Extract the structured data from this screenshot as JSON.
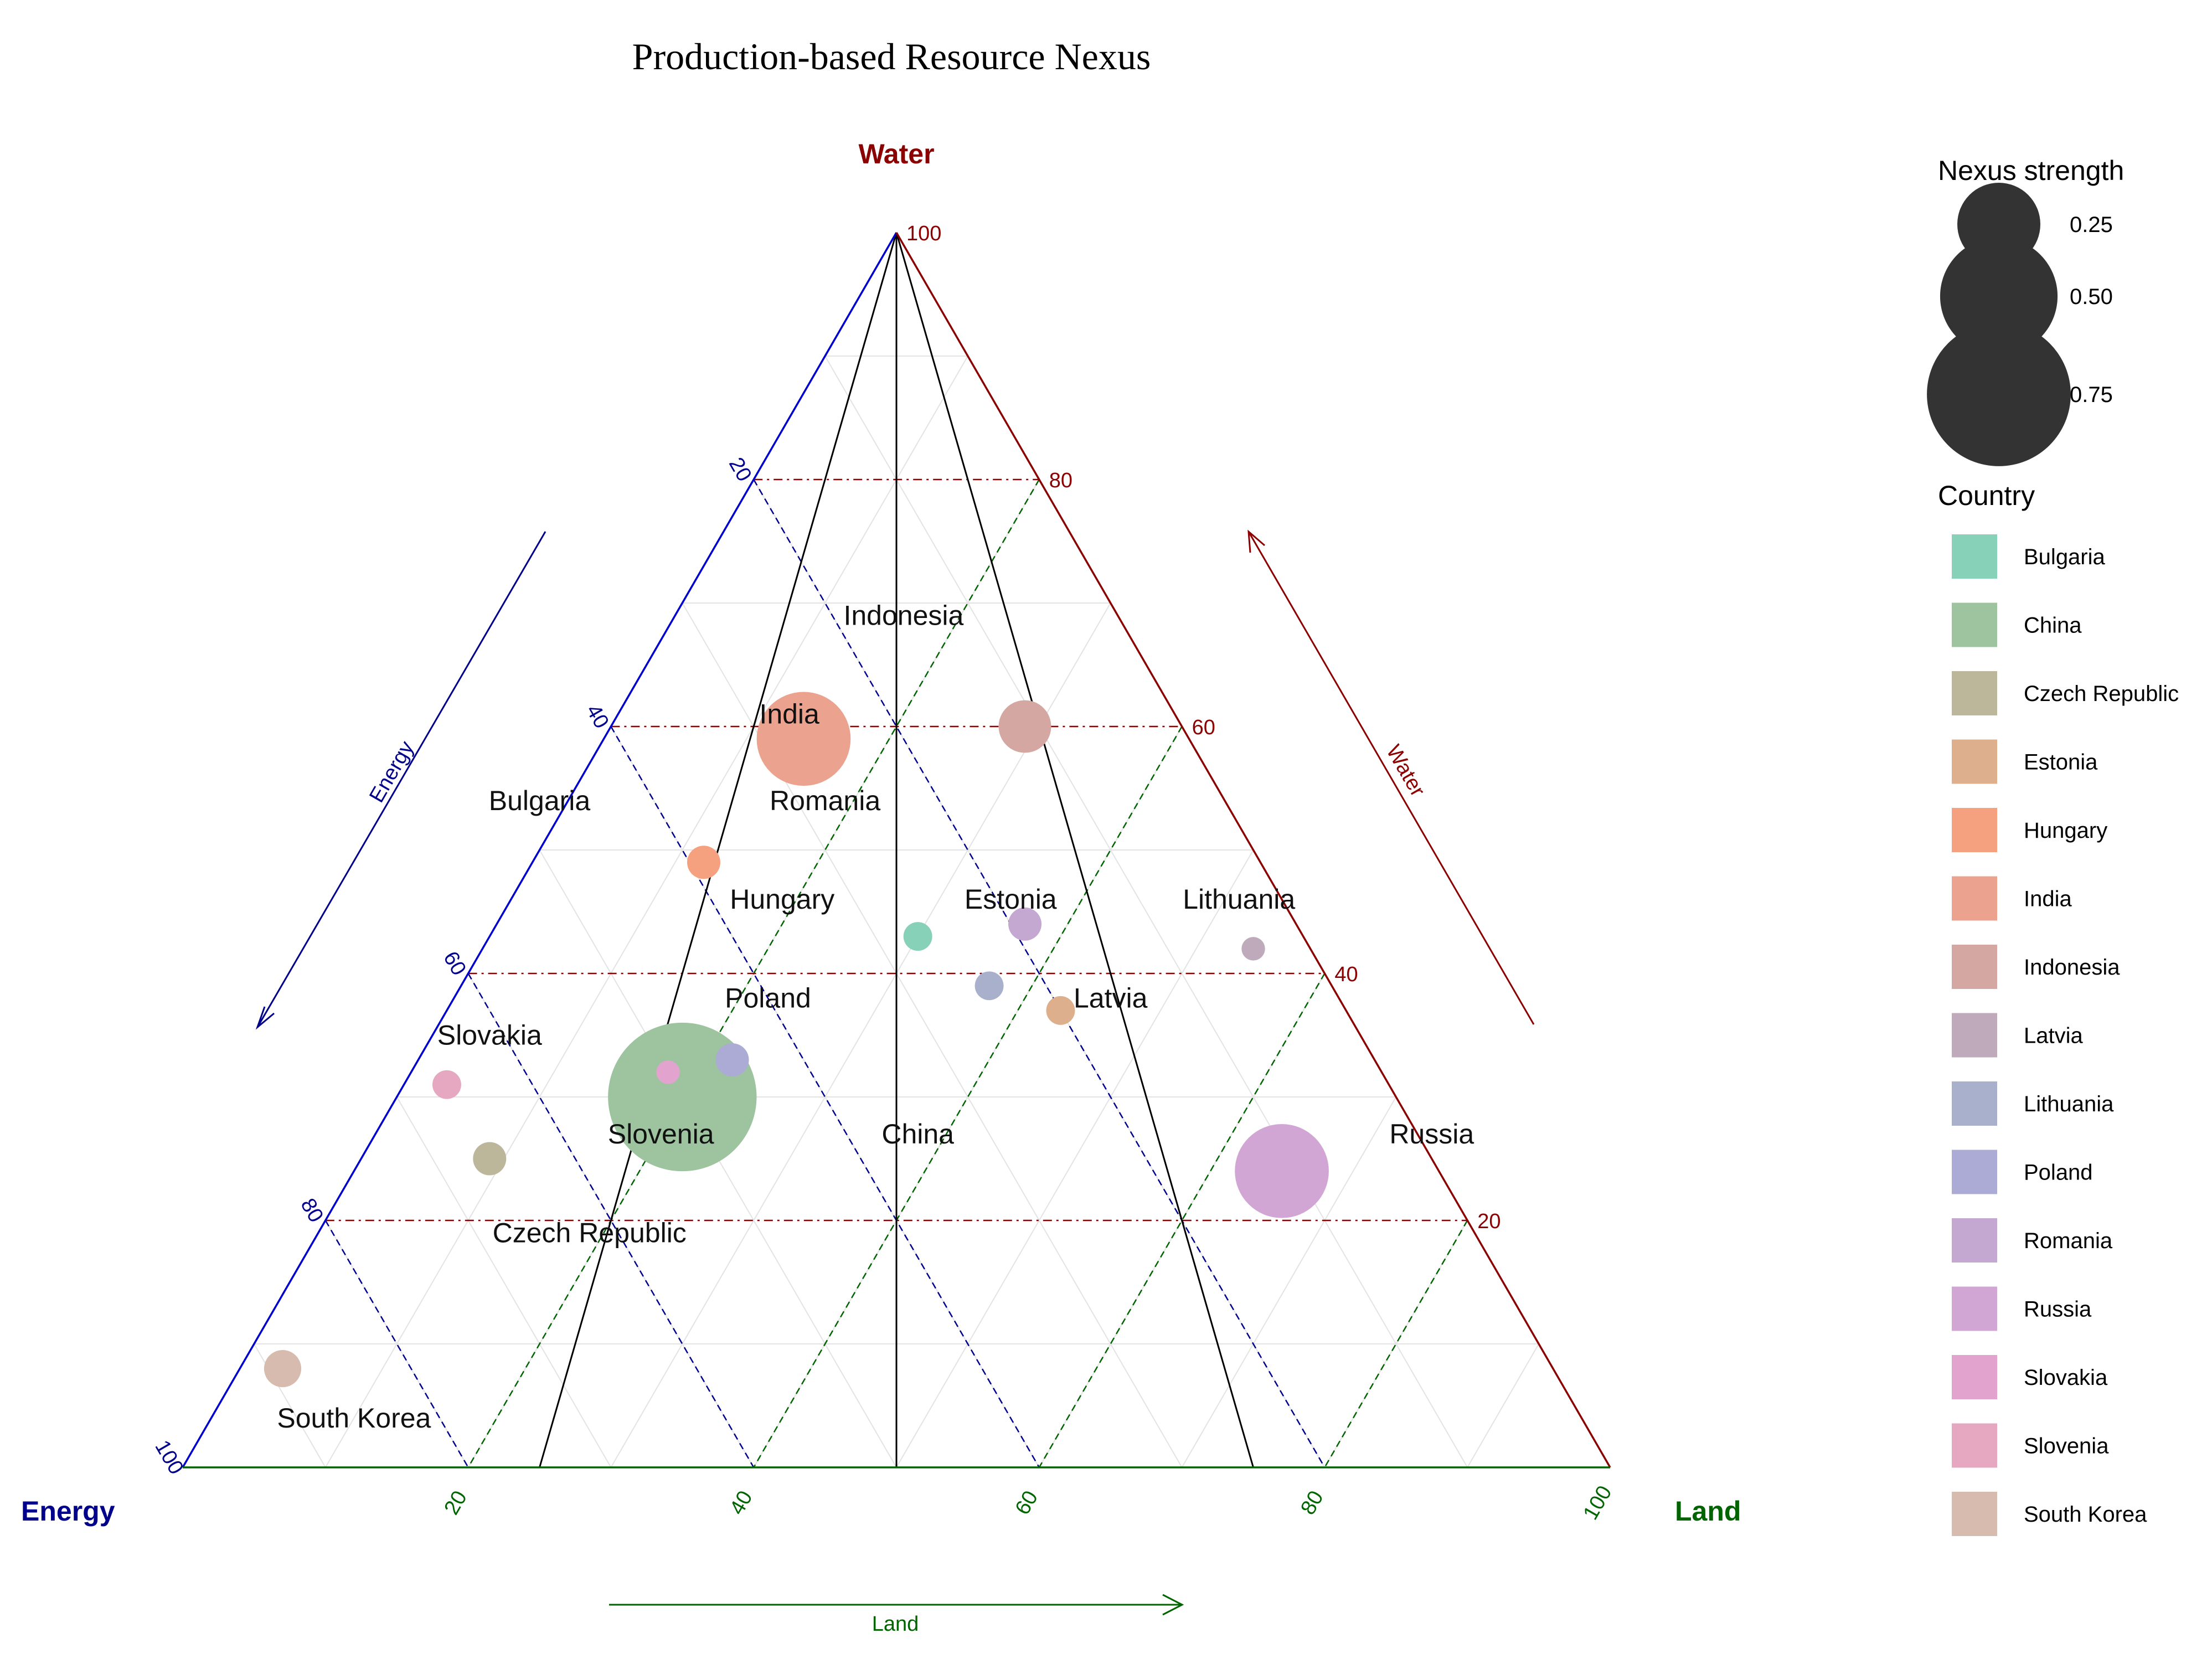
{
  "chart_data": {
    "type": "scatter",
    "subtype": "ternary-bubble",
    "title": "Production-based Resource Nexus",
    "axes": {
      "top": {
        "label": "Water",
        "color": "#8b0000",
        "arrow_label": "Water"
      },
      "left": {
        "label": "Energy",
        "color": "#00008b",
        "arrow_label": "Energy"
      },
      "right": {
        "label": "Land",
        "color": "#006400",
        "arrow_label": "Land"
      }
    },
    "ticks": [
      "20",
      "40",
      "60",
      "80",
      "100"
    ],
    "water_ticks": [
      "20",
      "40",
      "60",
      "80",
      "100"
    ],
    "grid": true,
    "legend_placement": "right",
    "size_legend": {
      "title": "Nexus strength",
      "entries": [
        {
          "label": "0.25",
          "value": 0.25
        },
        {
          "label": "0.50",
          "value": 0.5
        },
        {
          "label": "0.75",
          "value": 0.75
        }
      ]
    },
    "color_legend": {
      "title": "Country",
      "entries": [
        {
          "label": "Bulgaria",
          "color": "#88d1b9"
        },
        {
          "label": "China",
          "color": "#9dc39f"
        },
        {
          "label": "Czech Republic",
          "color": "#bcb79b"
        },
        {
          "label": "Estonia",
          "color": "#deaf8c"
        },
        {
          "label": "Hungary",
          "color": "#f5a07e"
        },
        {
          "label": "India",
          "color": "#eba38f"
        },
        {
          "label": "Indonesia",
          "color": "#d5a7a3"
        },
        {
          "label": "Latvia",
          "color": "#bfaabb"
        },
        {
          "label": "Lithuania",
          "color": "#a9b0cc"
        },
        {
          "label": "Poland",
          "color": "#ababd6"
        },
        {
          "label": "Romania",
          "color": "#c4a8d2"
        },
        {
          "label": "Russia",
          "color": "#d2a6d4"
        },
        {
          "label": "Slovakia",
          "color": "#e2a4cf"
        },
        {
          "label": "Slovenia",
          "color": "#e6a8c1"
        },
        {
          "label": "South Korea",
          "color": "#d6bbae"
        }
      ]
    },
    "points": [
      {
        "country": "Bulgaria",
        "energy": 27,
        "water": 43,
        "land": 30,
        "strength": 0.03
      },
      {
        "country": "China",
        "energy": 50,
        "water": 30,
        "land": 20,
        "strength": 0.8
      },
      {
        "country": "Czech Republic",
        "energy": 66,
        "water": 25,
        "land": 9,
        "strength": 0.04
      },
      {
        "country": "Estonia",
        "energy": 20,
        "water": 37,
        "land": 43,
        "strength": 0.03
      },
      {
        "country": "Hungary",
        "energy": 39,
        "water": 49,
        "land": 12,
        "strength": 0.04
      },
      {
        "country": "India",
        "energy": 27,
        "water": 59,
        "land": 14,
        "strength": 0.32
      },
      {
        "country": "Indonesia",
        "energy": 11,
        "water": 60,
        "land": 29,
        "strength": 0.1
      },
      {
        "country": "Latvia",
        "energy": 4,
        "water": 42,
        "land": 54,
        "strength": 0.02
      },
      {
        "country": "Lithuania",
        "energy": 24,
        "water": 39,
        "land": 37,
        "strength": 0.03
      },
      {
        "country": "Poland",
        "energy": 45,
        "water": 33,
        "land": 22,
        "strength": 0.04
      },
      {
        "country": "Romania",
        "energy": 19,
        "water": 44,
        "land": 37,
        "strength": 0.04
      },
      {
        "country": "Russia",
        "energy": 11,
        "water": 24,
        "land": 65,
        "strength": 0.32
      },
      {
        "country": "Slovakia",
        "energy": 50,
        "water": 32,
        "land": 18,
        "strength": 0.02
      },
      {
        "country": "Slovenia",
        "energy": 66,
        "water": 31,
        "land": 3,
        "strength": 0.03
      },
      {
        "country": "South Korea",
        "energy": 89,
        "water": 8,
        "land": 3,
        "strength": 0.05
      }
    ],
    "point_labels": [
      {
        "text": "Indonesia",
        "energy": 15,
        "water": 69,
        "land": 16
      },
      {
        "text": "India",
        "energy": 27,
        "water": 61,
        "land": 12
      },
      {
        "text": "Bulgaria",
        "energy": 48,
        "water": 54,
        "land": -2
      },
      {
        "text": "Romania",
        "energy": 28,
        "water": 54,
        "land": 18
      },
      {
        "text": "Hungary",
        "energy": 35,
        "water": 46,
        "land": 19
      },
      {
        "text": "Estonia",
        "energy": 19,
        "water": 46,
        "land": 35
      },
      {
        "text": "Lithuania",
        "energy": 3,
        "water": 46,
        "land": 51
      },
      {
        "text": "Poland",
        "energy": 40,
        "water": 38,
        "land": 22
      },
      {
        "text": "Latvia",
        "energy": 16,
        "water": 38,
        "land": 46
      },
      {
        "text": "Slovakia",
        "energy": 61,
        "water": 35,
        "land": 4
      },
      {
        "text": "Slovenia",
        "energy": 53,
        "water": 27,
        "land": 20
      },
      {
        "text": "China",
        "energy": 35,
        "water": 27,
        "land": 38
      },
      {
        "text": "Russia",
        "energy": -1,
        "water": 27,
        "land": 74
      },
      {
        "text": "Czech Republic",
        "energy": 62,
        "water": 19,
        "land": 19
      },
      {
        "text": "South Korea",
        "energy": 86,
        "water": 4,
        "land": 10
      }
    ]
  }
}
